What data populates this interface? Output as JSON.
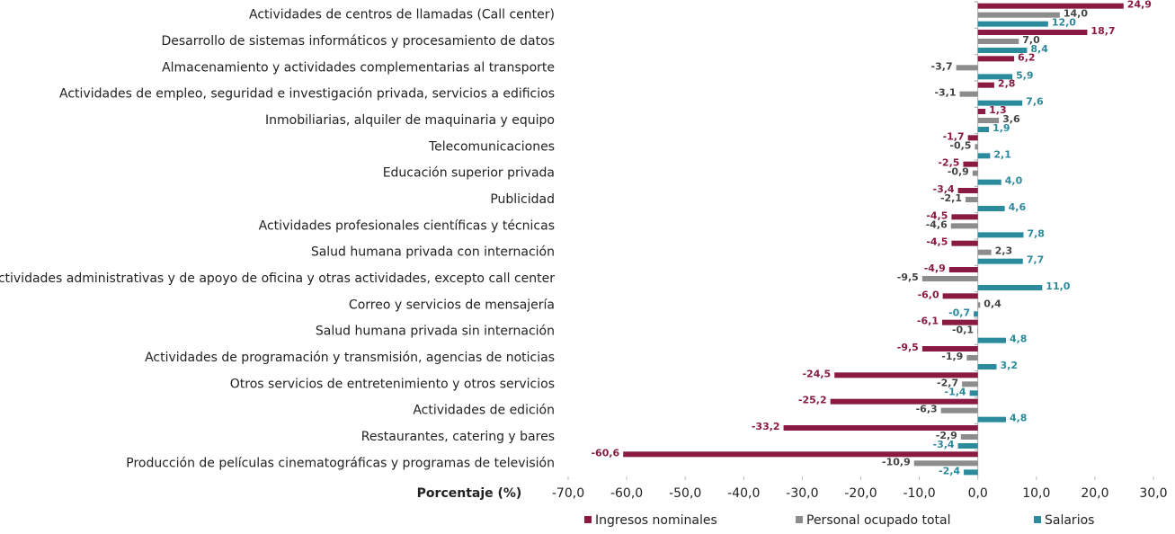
{
  "chart_data": {
    "type": "bar",
    "orientation": "horizontal",
    "xlabel": "Porcentaje (%)",
    "categories": [
      "Actividades de centros de llamadas (Call center)",
      "Desarrollo de sistemas informáticos y procesamiento de datos",
      "Almacenamiento y actividades complementarias al transporte",
      "Actividades de empleo, seguridad e investigación privada, servicios a edificios",
      "Inmobiliarias, alquiler de maquinaria y equipo",
      "Telecomunicaciones",
      "Educación superior privada",
      "Publicidad",
      "Actividades profesionales científicas y técnicas ",
      "Salud humana privada con internación",
      "Actividades administrativas y de apoyo de oficina y otras actividades, excepto call center",
      "Correo y servicios de mensajería",
      "Salud humana privada sin internación",
      "Actividades de programación y transmisión,  agencias de noticias",
      "Otros servicios de entretenimiento y otros servicios",
      "Actividades de edición",
      "Restaurantes, catering y bares",
      "Producción de películas cinematográficas y programas de televisión"
    ],
    "series": [
      {
        "name": "Ingresos nominales",
        "color": "#8b1a42",
        "values": [
          24.9,
          18.7,
          6.2,
          2.8,
          1.3,
          -1.7,
          -2.5,
          -3.4,
          -4.5,
          -4.5,
          -4.9,
          -6.0,
          -6.1,
          -9.5,
          -24.5,
          -25.2,
          -33.2,
          -60.6
        ],
        "value_labels": [
          "24,9",
          "18,7",
          "6,2",
          "2,8",
          "1,3",
          "-1,7",
          "-2,5",
          "-3,4",
          "-4,5",
          "-4,5",
          "-4,9",
          "-6,0",
          "-6,1",
          "-9,5",
          "-24,5",
          "-25,2",
          "-33,2",
          "-60,6"
        ]
      },
      {
        "name": "Personal ocupado total",
        "color": "#8c8c8c",
        "values": [
          14.0,
          7.0,
          -3.7,
          -3.1,
          3.6,
          -0.5,
          -0.9,
          -2.1,
          -4.6,
          2.3,
          -9.5,
          0.4,
          -0.1,
          -1.9,
          -2.7,
          -6.3,
          -2.9,
          -10.9
        ],
        "value_labels": [
          "14,0",
          "7,0",
          "-3,7",
          "-3,1",
          "3,6",
          "-0,5",
          "-0,9",
          "-2,1",
          "-4,6",
          "2,3",
          "-9,5",
          "0,4",
          "-0,1",
          "-1,9",
          "-2,7",
          "-6,3",
          "-2,9",
          "-10,9"
        ]
      },
      {
        "name": "Salarios",
        "color": "#2b8a9c",
        "values": [
          12.0,
          8.4,
          5.9,
          7.6,
          1.9,
          2.1,
          4.0,
          4.6,
          7.8,
          7.7,
          11.0,
          -0.7,
          4.8,
          3.2,
          -1.4,
          4.8,
          -3.4,
          -2.4
        ],
        "value_labels": [
          "12,0",
          "8,4",
          "5,9",
          "7,6",
          "1,9",
          "2,1",
          "4,0",
          "4,6",
          "7,8",
          "7,7",
          "11,0",
          "-0,7",
          "4,8",
          "3,2",
          "-1,4",
          "4,8",
          "-3,4",
          "-2,4"
        ]
      }
    ],
    "xlim": [
      -70,
      30
    ],
    "xticks": [
      {
        "value": -70,
        "label": "-70,0"
      },
      {
        "value": -60,
        "label": "-60,0"
      },
      {
        "value": -50,
        "label": "-50,0"
      },
      {
        "value": -40,
        "label": "-40,0"
      },
      {
        "value": -30,
        "label": "-30,0"
      },
      {
        "value": -20,
        "label": "-20,0"
      },
      {
        "value": -10,
        "label": "-10,0"
      },
      {
        "value": 0,
        "label": "0,0"
      },
      {
        "value": 10,
        "label": "10,0"
      },
      {
        "value": 20,
        "label": "20,0"
      },
      {
        "value": 30,
        "label": "30,0"
      }
    ],
    "legend": "bottom"
  }
}
